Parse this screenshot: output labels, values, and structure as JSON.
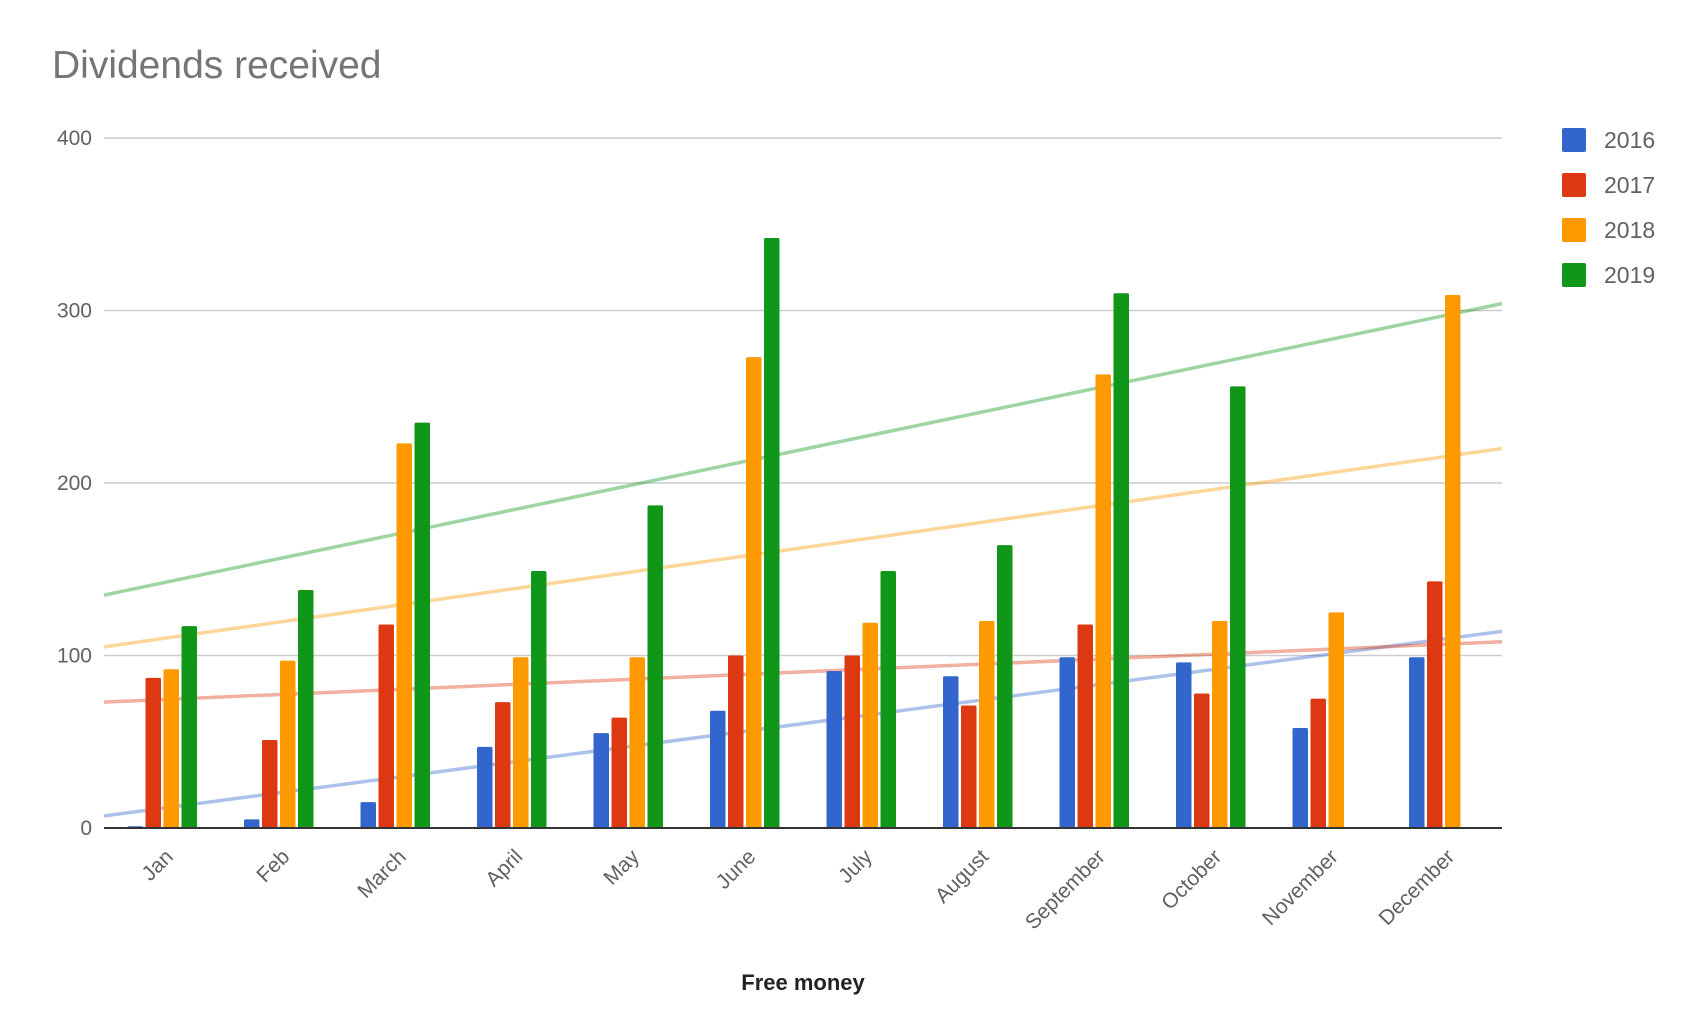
{
  "chart_data": {
    "type": "bar",
    "title": "Dividends received",
    "xlabel": "Free money",
    "ylabel": "",
    "ylim": [
      0,
      400
    ],
    "yticks": [
      0,
      100,
      200,
      300,
      400
    ],
    "grid": true,
    "legend_position": "right",
    "categories": [
      "Jan",
      "Feb",
      "March",
      "April",
      "May",
      "June",
      "July",
      "August",
      "September",
      "October",
      "November",
      "December"
    ],
    "series": [
      {
        "name": "2016",
        "color": "#3366cc",
        "values": [
          1,
          5,
          15,
          47,
          55,
          68,
          91,
          88,
          99,
          96,
          58,
          99
        ],
        "trendline": {
          "start": 7,
          "end": 114
        }
      },
      {
        "name": "2017",
        "color": "#dc3912",
        "values": [
          87,
          51,
          118,
          73,
          64,
          100,
          100,
          71,
          118,
          78,
          75,
          143
        ],
        "trendline": {
          "start": 73,
          "end": 108
        }
      },
      {
        "name": "2018",
        "color": "#ff9900",
        "values": [
          92,
          97,
          223,
          99,
          99,
          273,
          119,
          120,
          263,
          120,
          125,
          309
        ],
        "trendline": {
          "start": 105,
          "end": 220
        }
      },
      {
        "name": "2019",
        "color": "#109618",
        "values": [
          117,
          138,
          235,
          149,
          187,
          342,
          149,
          164,
          310,
          256,
          null,
          null
        ],
        "trendline": {
          "start": 135,
          "end": 304
        }
      }
    ]
  }
}
